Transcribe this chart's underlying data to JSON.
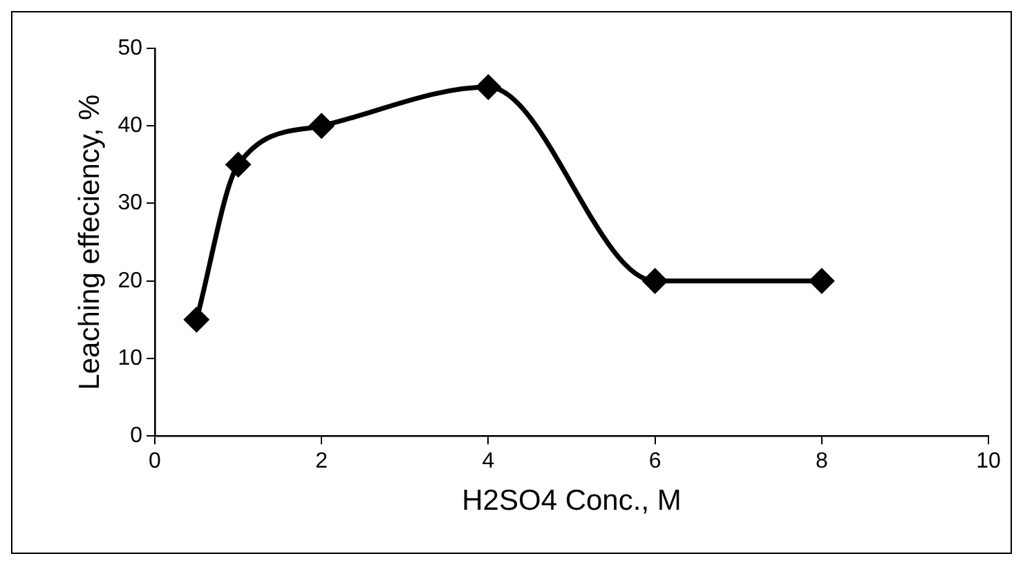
{
  "chart_data": {
    "type": "line",
    "xlabel": "H2SO4 Conc., M",
    "ylabel": "Leaching effeciency, %",
    "x": [
      0.5,
      1,
      2,
      4,
      6,
      8
    ],
    "series": [
      {
        "color": "#000000",
        "values": [
          15,
          35,
          40,
          45,
          20,
          20
        ]
      }
    ],
    "xlim": [
      0,
      10
    ],
    "xticks": [
      0,
      2,
      4,
      6,
      8,
      10
    ],
    "ylim": [
      0,
      50
    ],
    "yticks": [
      0,
      10,
      20,
      30,
      40,
      50
    ],
    "grid": false,
    "legend": false,
    "marker": "diamond",
    "line_style": "solid"
  }
}
